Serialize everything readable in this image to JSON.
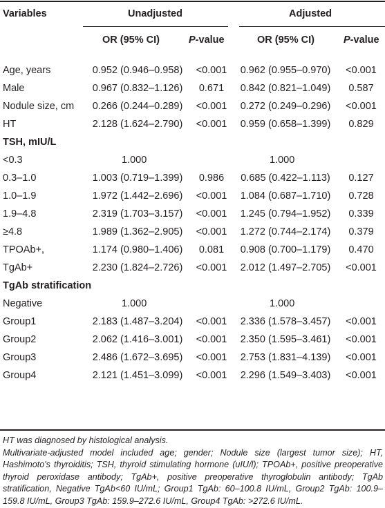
{
  "header": {
    "variables": "Variables",
    "unadjusted": "Unadjusted",
    "adjusted": "Adjusted",
    "or_ci": "OR (95% CI)",
    "p_italic": "P",
    "p_rest": "-value"
  },
  "rows": [
    {
      "label": "Age, years",
      "u_or": "0.952 (0.946–0.958)",
      "u_p": "<0.001",
      "a_or": "0.962 (0.955–0.970)",
      "a_p": "<0.001"
    },
    {
      "label": "Male",
      "u_or": "0.967 (0.832–1.126)",
      "u_p": "0.671",
      "a_or": "0.842 (0.821–1.049)",
      "a_p": "0.587"
    },
    {
      "label": "Nodule size, cm",
      "u_or": "0.266 (0.244–0.289)",
      "u_p": "<0.001",
      "a_or": "0.272 (0.249–0.296)",
      "a_p": "<0.001"
    },
    {
      "label": "HT",
      "u_or": "2.128 (1.624–2.790)",
      "u_p": "<0.001",
      "a_or": "0.959 (0.658–1.399)",
      "a_p": "0.829"
    },
    {
      "section": "TSH, mIU/L"
    },
    {
      "label": "<0.3",
      "u_ref": "1.000",
      "a_ref": "1.000"
    },
    {
      "label": "0.3–1.0",
      "u_or": "1.003 (0.719–1.399)",
      "u_p": "0.986",
      "a_or": "0.685 (0.422–1.113)",
      "a_p": "0.127"
    },
    {
      "label": "1.0–1.9",
      "u_or": "1.972 (1.442–2.696)",
      "u_p": "<0.001",
      "a_or": "1.084 (0.687–1.710)",
      "a_p": "0.728"
    },
    {
      "label": "1.9–4.8",
      "u_or": "2.319 (1.703–3.157)",
      "u_p": "<0.001",
      "a_or": "1.245 (0.794–1.952)",
      "a_p": "0.339"
    },
    {
      "label": "≥4.8",
      "u_or": "1.989 (1.362–2.905)",
      "u_p": "<0.001",
      "a_or": "1.272 (0.744–2.174)",
      "a_p": "0.379"
    },
    {
      "label": "TPOAb+,",
      "u_or": "1.174 (0.980–1.406)",
      "u_p": "0.081",
      "a_or": "0.908 (0.700–1.179)",
      "a_p": "0.470"
    },
    {
      "label": "TgAb+",
      "u_or": "2.230 (1.824–2.726)",
      "u_p": "<0.001",
      "a_or": "2.012 (1.497–2.705)",
      "a_p": "<0.001"
    },
    {
      "section": "TgAb stratification"
    },
    {
      "label": "Negative",
      "u_ref": "1.000",
      "a_ref": "1.000"
    },
    {
      "label": "Group1",
      "u_or": "2.183 (1.487–3.204)",
      "u_p": "<0.001",
      "a_or": "2.336 (1.578–3.457)",
      "a_p": "<0.001"
    },
    {
      "label": "Group2",
      "u_or": "2.062 (1.416–3.001)",
      "u_p": "<0.001",
      "a_or": "2.350 (1.595–3.461)",
      "a_p": "<0.001"
    },
    {
      "label": "Group3",
      "u_or": "2.486 (1.672–3.695)",
      "u_p": "<0.001",
      "a_or": "2.753 (1.831–4.139)",
      "a_p": "<0.001"
    },
    {
      "label": "Group4",
      "u_or": "2.121 (1.451–3.099)",
      "u_p": "<0.001",
      "a_or": "2.296 (1.549–3.403)",
      "a_p": "<0.001"
    }
  ],
  "footnotes": {
    "line1": "HT was diagnosed by histological analysis.",
    "line2": "Multivariate-adjusted model included age; gender; Nodule size (largest tumor size); HT, Hashimoto's thyroiditis; TSH, thyroid stimulating hormone (uIU/l); TPOAb+, positive preoperative thyroid peroxidase antibody; TgAb+, positive preoperative thyroglobulin antibody; TgAb stratification, Negative TgAb<60 IU/mL; Group1 TgAb: 60–100.8 IU/mL, Group2 TgAb: 100.9–159.8 IU/mL, Group3 TgAb: 159.9–272.6 IU/mL, Group4 TgAb: >272.6 IU/mL."
  }
}
